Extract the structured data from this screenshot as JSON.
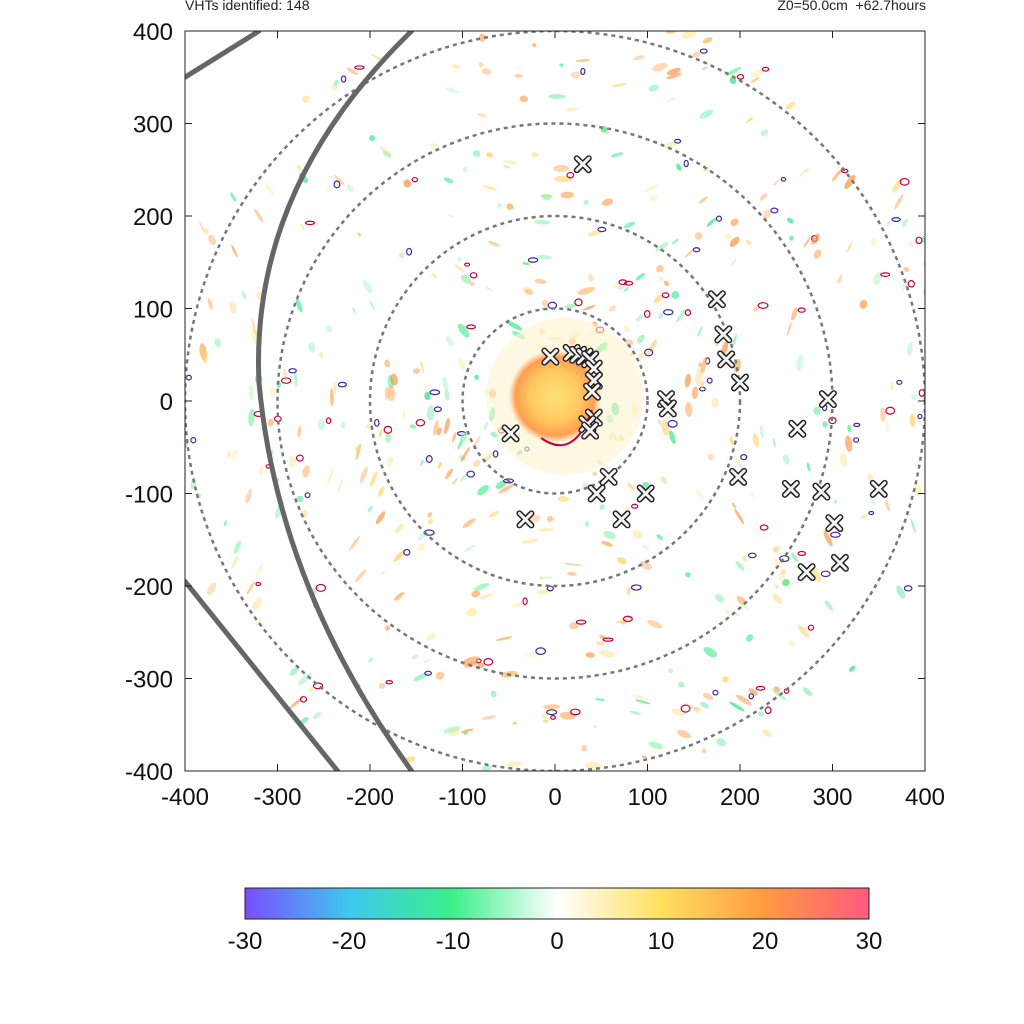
{
  "header": {
    "left": "VHTs identified: 148",
    "right": "Z0=50.0cm  +62.7hours"
  },
  "chart_data": {
    "type": "scatter",
    "title": "",
    "xlabel": "",
    "ylabel": "",
    "xlim": [
      -400,
      400
    ],
    "ylim": [
      -400,
      400
    ],
    "xticks": [
      "-400",
      "-300",
      "-200",
      "-100",
      "0",
      "100",
      "200",
      "300",
      "400"
    ],
    "yticks": [
      "400",
      "300",
      "200",
      "100",
      "0",
      "-100",
      "-200",
      "-300",
      "-400"
    ],
    "range_rings_radius": [
      100,
      200,
      300,
      400
    ],
    "colorbar": {
      "min": -30,
      "max": 30,
      "ticks": [
        "-30",
        "-20",
        "-10",
        "0",
        "10",
        "20",
        "30"
      ],
      "colors": [
        "#7a4dff",
        "#3ec8f0",
        "#3cf08a",
        "#ffffff",
        "#ffe060",
        "#ff9a40",
        "#ff5a80"
      ]
    },
    "vht_markers": [
      {
        "x": -5,
        "y": 48
      },
      {
        "x": 18,
        "y": 52
      },
      {
        "x": 25,
        "y": 50
      },
      {
        "x": 32,
        "y": 48
      },
      {
        "x": 38,
        "y": 45
      },
      {
        "x": 42,
        "y": 35
      },
      {
        "x": 42,
        "y": 22
      },
      {
        "x": 40,
        "y": 10
      },
      {
        "x": 42,
        "y": -18
      },
      {
        "x": 35,
        "y": -25
      },
      {
        "x": 38,
        "y": -32
      },
      {
        "x": -48,
        "y": -35
      },
      {
        "x": 120,
        "y": 2
      },
      {
        "x": 122,
        "y": -8
      },
      {
        "x": 175,
        "y": 110
      },
      {
        "x": 182,
        "y": 72
      },
      {
        "x": 185,
        "y": 45
      },
      {
        "x": 200,
        "y": 20
      },
      {
        "x": 262,
        "y": -30
      },
      {
        "x": 295,
        "y": 2
      },
      {
        "x": 58,
        "y": -82
      },
      {
        "x": 45,
        "y": -100
      },
      {
        "x": 98,
        "y": -100
      },
      {
        "x": 72,
        "y": -128
      },
      {
        "x": -32,
        "y": -128
      },
      {
        "x": 198,
        "y": -82
      },
      {
        "x": 255,
        "y": -95
      },
      {
        "x": 288,
        "y": -98
      },
      {
        "x": 350,
        "y": -95
      },
      {
        "x": 302,
        "y": -132
      },
      {
        "x": 308,
        "y": -175
      },
      {
        "x": 272,
        "y": -185
      },
      {
        "x": 30,
        "y": 256
      }
    ],
    "eye": {
      "x": 0,
      "y": 5,
      "radius": 50
    }
  }
}
